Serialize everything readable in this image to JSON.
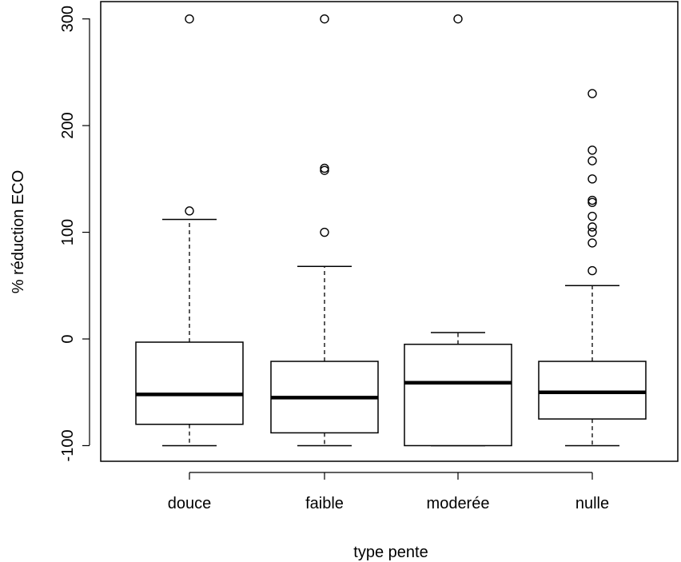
{
  "chart_data": {
    "type": "boxplot",
    "xlabel": "type pente",
    "ylabel": "% réduction ECO",
    "ylim": [
      -115,
      317
    ],
    "yticks": [
      -100,
      0,
      100,
      200,
      300
    ],
    "ytick_labels": [
      "-100",
      "0",
      "100",
      "200",
      "300"
    ],
    "categories": [
      "douce",
      "faible",
      "moderée",
      "nulle"
    ],
    "boxes": [
      {
        "category": "douce",
        "whisker_low": -100,
        "q1": -80,
        "median": -52,
        "q3": -3,
        "whisker_high": 112,
        "outliers": [
          300,
          120
        ]
      },
      {
        "category": "faible",
        "whisker_low": -100,
        "q1": -88,
        "median": -55,
        "q3": -21,
        "whisker_high": 68,
        "outliers": [
          300,
          160,
          158,
          100
        ]
      },
      {
        "category": "moderée",
        "whisker_low": -100,
        "q1": -100,
        "median": -41,
        "q3": -5,
        "whisker_high": 6,
        "outliers": [
          300
        ]
      },
      {
        "category": "nulle",
        "whisker_low": -100,
        "q1": -75,
        "median": -50,
        "q3": -21,
        "whisker_high": 50,
        "outliers": [
          230,
          177,
          167,
          150,
          130,
          128,
          115,
          105,
          100,
          90,
          64
        ]
      }
    ],
    "grid": false,
    "legend": "none",
    "colors": {
      "box_fill": "#ffffff",
      "stroke": "#000000",
      "median": "#000000"
    }
  }
}
